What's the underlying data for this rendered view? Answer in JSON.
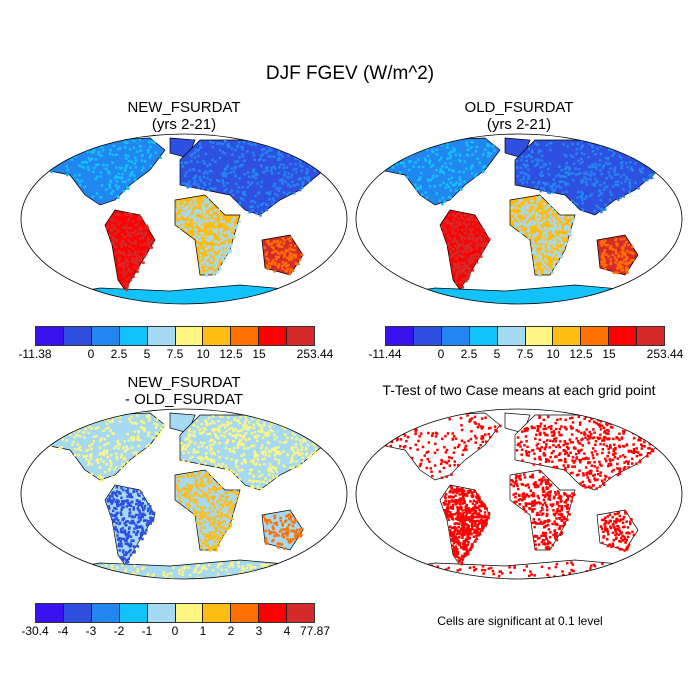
{
  "title": "DJF FGEV (W/m^2)",
  "colors": [
    "#3a12ee",
    "#2f4fe0",
    "#2186f0",
    "#12c3fb",
    "#a6d9f2",
    "#fff583",
    "#ffbd14",
    "#ff7000",
    "#ff0000",
    "#d42a2a"
  ],
  "panels": [
    {
      "title1": "NEW_FSURDAT",
      "title2": "(yrs 2-21)",
      "colorbar_labels": [
        "-11.38",
        "",
        "0",
        "2.5",
        "5",
        "7.5",
        "10",
        "12.5",
        "15",
        "",
        "253.44"
      ]
    },
    {
      "title1": "OLD_FSURDAT",
      "title2": "(yrs 2-21)",
      "colorbar_labels": [
        "-11.44",
        "",
        "0",
        "2.5",
        "5",
        "7.5",
        "10",
        "12.5",
        "15",
        "",
        "253.44"
      ]
    },
    {
      "title1": "NEW_FSURDAT",
      "title2": "- OLD_FSURDAT",
      "colorbar_labels": [
        "-30.4",
        "-4",
        "-3",
        "-2",
        "-1",
        "0",
        "1",
        "2",
        "3",
        "4",
        "77.87"
      ]
    },
    {
      "title1": "T-Test of two Case means at each grid point",
      "title2": "",
      "footnote": "Cells are significant at 0.1 level",
      "significant_color": "#ff0000"
    }
  ]
}
